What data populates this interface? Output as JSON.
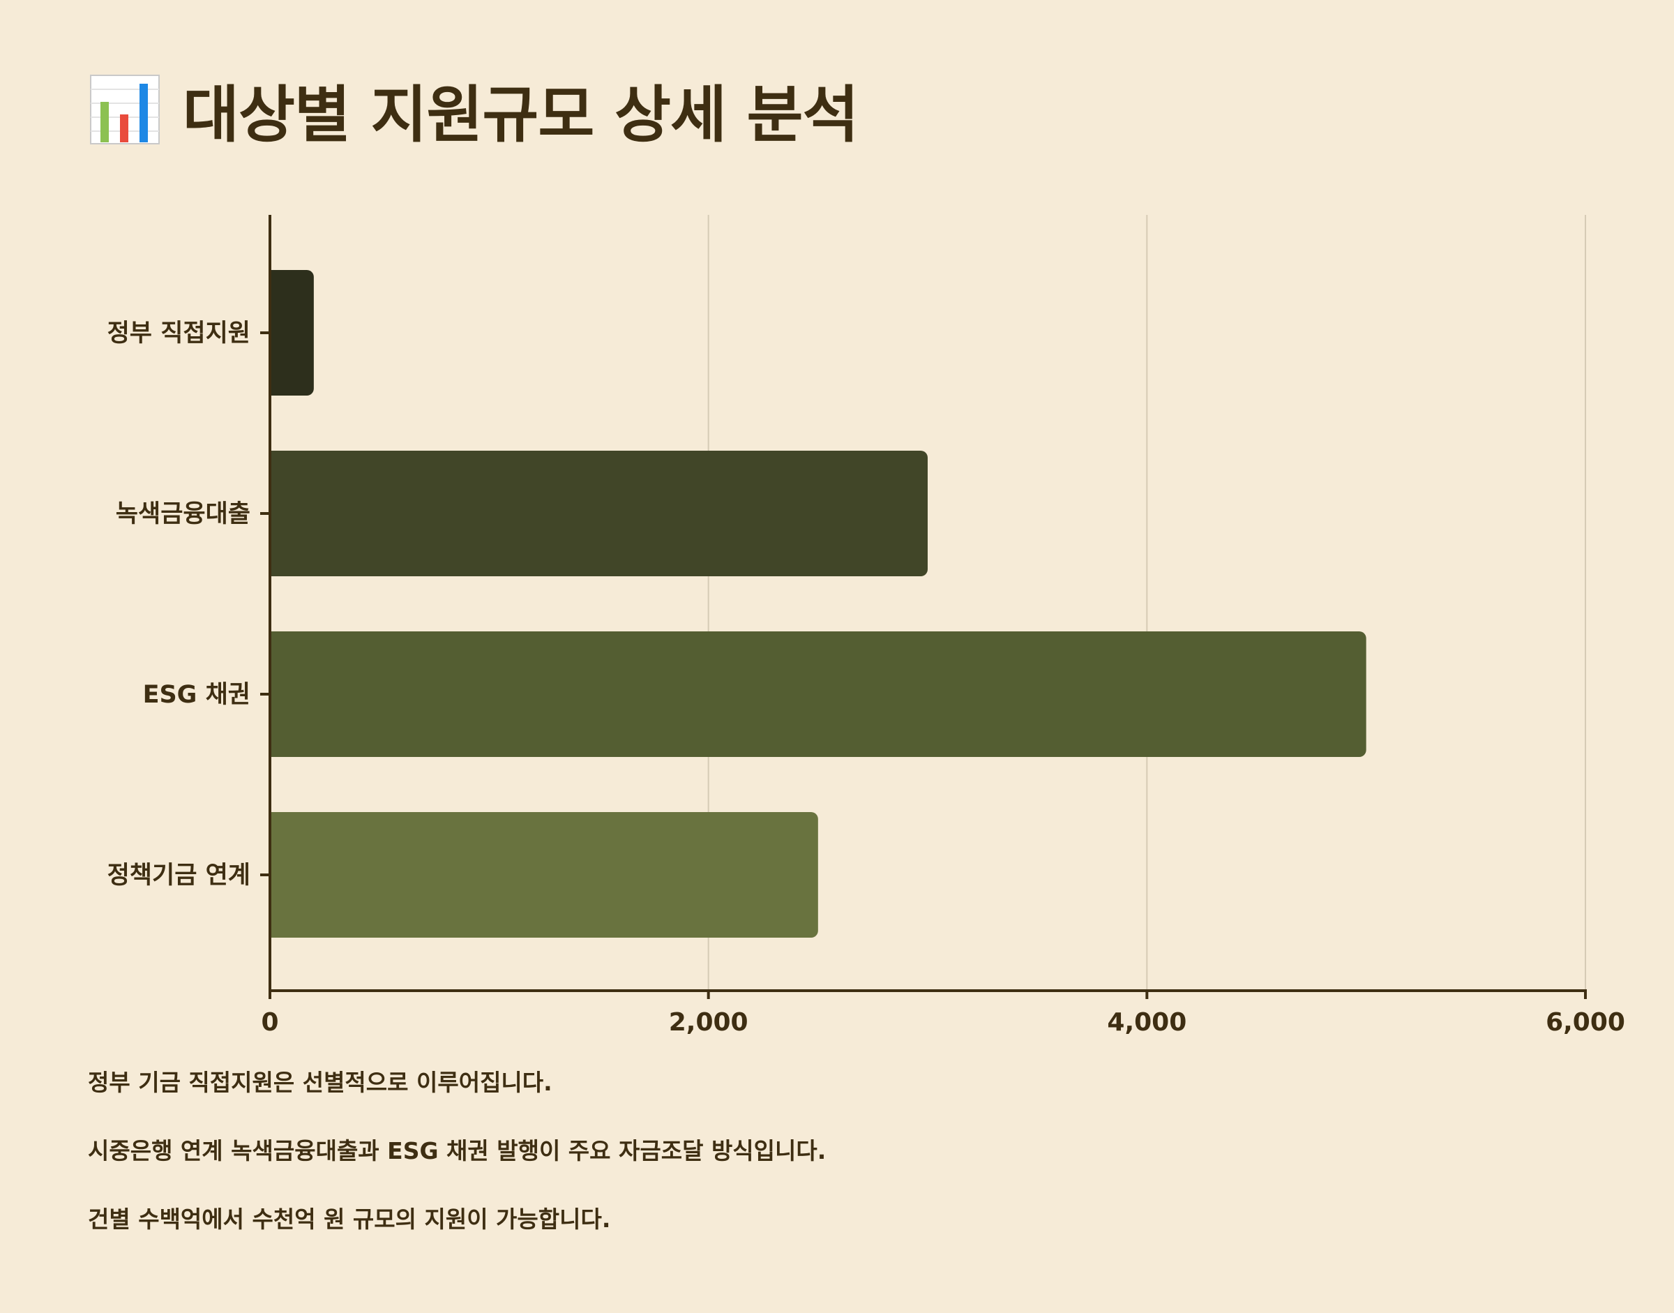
{
  "title": {
    "icon": "bar-chart-icon",
    "text": "대상별 지원규모 상세 분석"
  },
  "colors": {
    "background": "#f6ebd7",
    "text": "#3e2e12",
    "axis": "#3e2e12",
    "grid": "#d6cbb5"
  },
  "chart_data": {
    "type": "bar",
    "orientation": "horizontal",
    "categories": [
      "정부 직접지원",
      "녹색금융대출",
      "ESG 채권",
      "정책기금 연계"
    ],
    "values": [
      200,
      3000,
      5000,
      2500
    ],
    "colors": [
      "#2d2f1c",
      "#414628",
      "#545e32",
      "#69733f"
    ],
    "xlim": [
      0,
      6000
    ],
    "xticks": [
      0,
      2000,
      4000,
      6000
    ],
    "xtick_labels": [
      "0",
      "2,000",
      "4,000",
      "6,000"
    ],
    "title": "",
    "xlabel": "",
    "ylabel": "",
    "grid": "vertical",
    "legend": "none"
  },
  "notes": [
    "정부 기금 직접지원은 선별적으로 이루어집니다.",
    "시중은행 연계 녹색금융대출과 ESG 채권 발행이 주요 자금조달 방식입니다.",
    "건별 수백억에서 수천억 원 규모의 지원이 가능합니다."
  ]
}
